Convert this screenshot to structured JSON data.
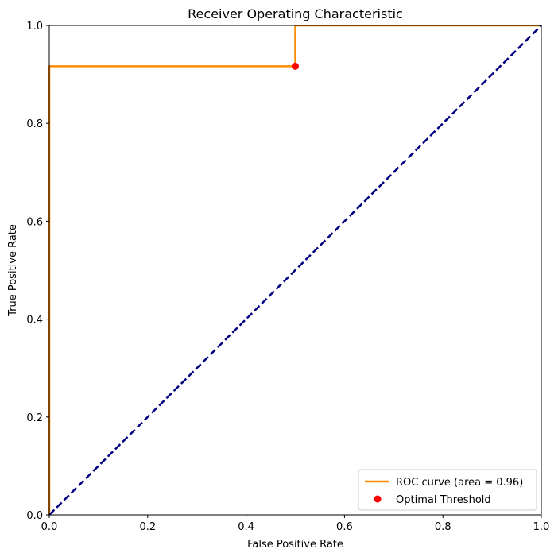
{
  "chart_data": {
    "type": "line",
    "title": "Receiver Operating Characteristic",
    "xlabel": "False Positive Rate",
    "ylabel": "True Positive Rate",
    "xlim": [
      0.0,
      1.0
    ],
    "ylim": [
      0.0,
      1.0
    ],
    "xticks": [
      "0.0",
      "0.2",
      "0.4",
      "0.6",
      "0.8",
      "1.0"
    ],
    "yticks": [
      "0.0",
      "0.2",
      "0.4",
      "0.6",
      "0.8",
      "1.0"
    ],
    "xtick_values": [
      0.0,
      0.2,
      0.4,
      0.6,
      0.8,
      1.0
    ],
    "ytick_values": [
      0.0,
      0.2,
      0.4,
      0.6,
      0.8,
      1.0
    ],
    "grid": false,
    "legend_position": "lower-right",
    "series": [
      {
        "name": "ROC curve (area = 0.96)",
        "kind": "line",
        "color": "#ff8c00",
        "x": [
          0.0,
          0.0,
          0.5,
          0.5,
          1.0
        ],
        "y": [
          0.0,
          0.9167,
          0.9167,
          1.0,
          1.0
        ]
      },
      {
        "name": "",
        "kind": "dashed-line",
        "color": "#000080",
        "x": [
          0.0,
          1.0
        ],
        "y": [
          0.0,
          1.0
        ]
      },
      {
        "name": "Optimal Threshold",
        "kind": "scatter",
        "color": "#ff0000",
        "x": [
          0.5
        ],
        "y": [
          0.9167
        ]
      }
    ]
  }
}
